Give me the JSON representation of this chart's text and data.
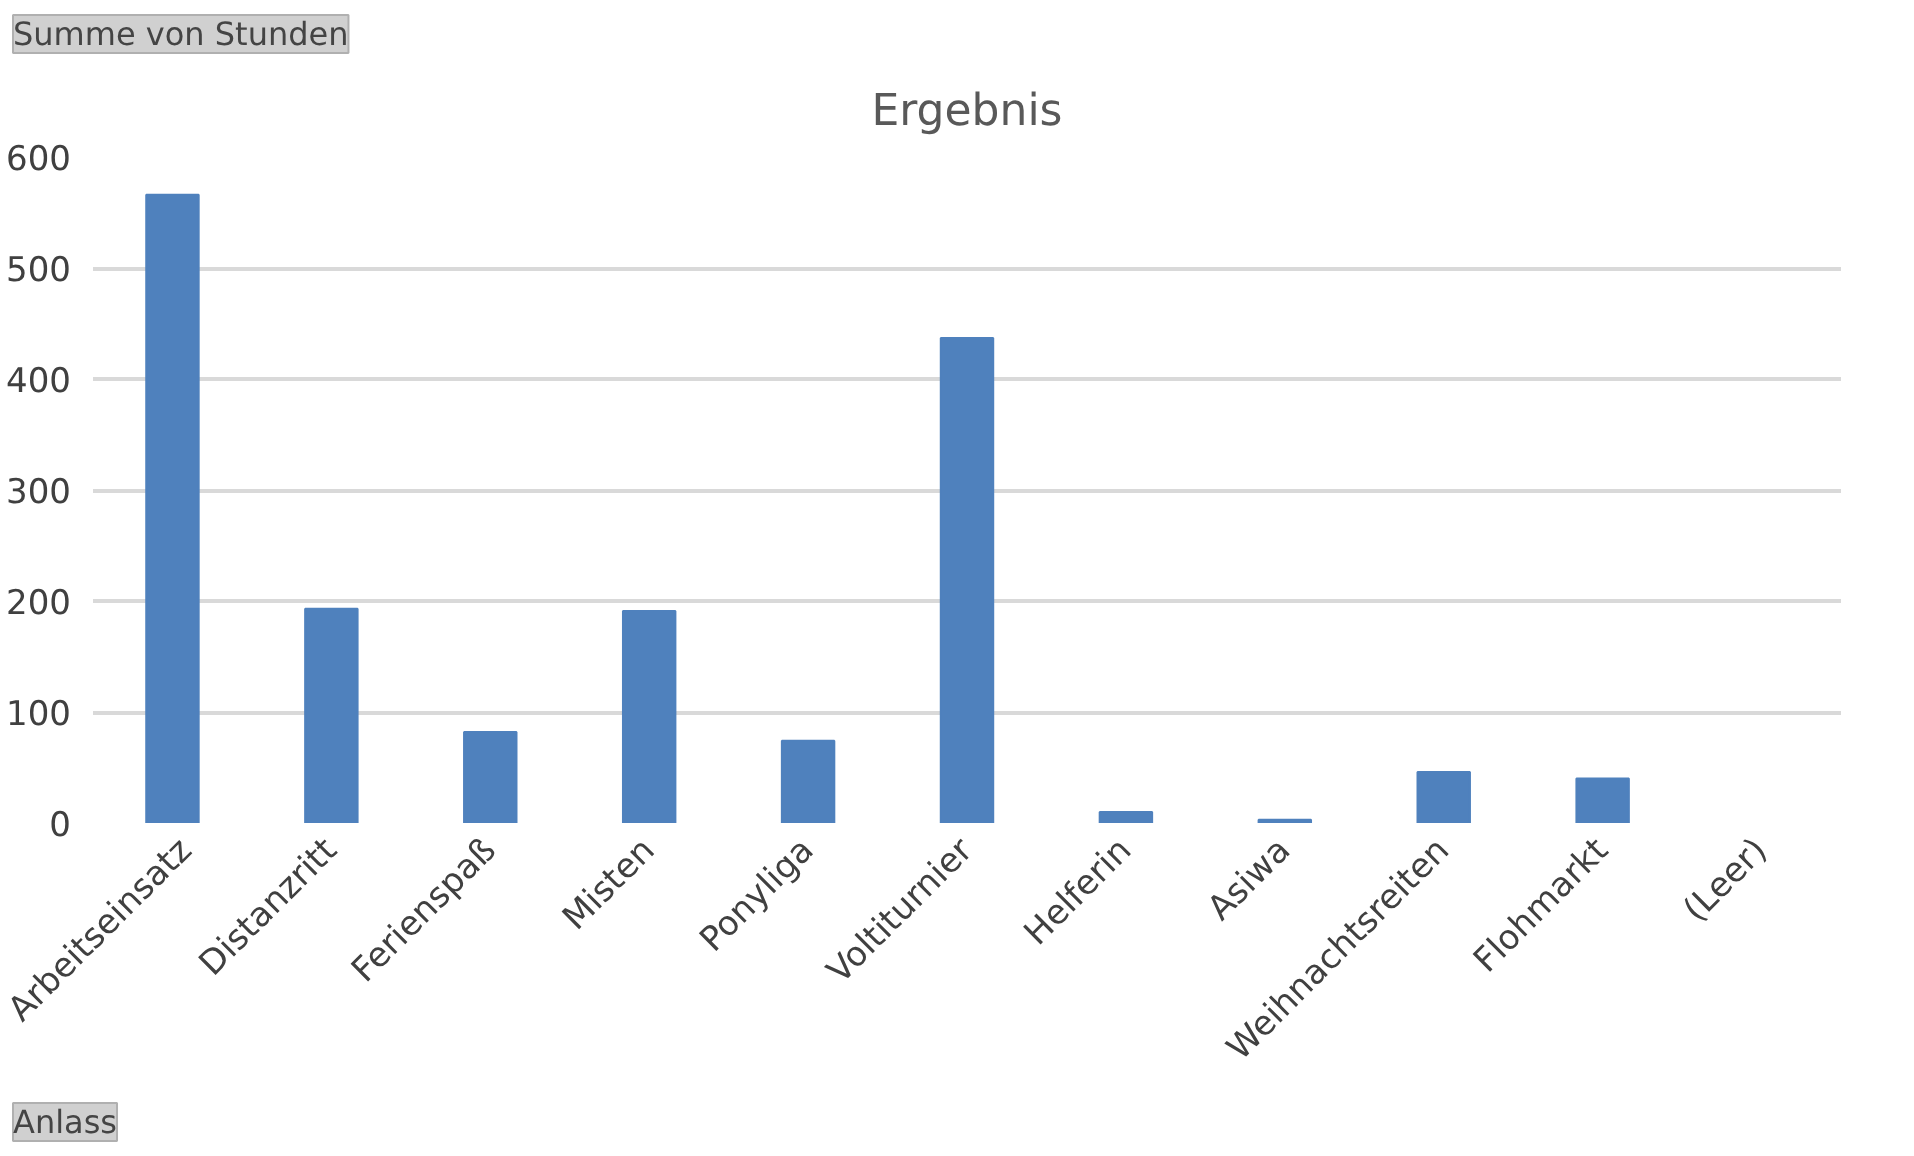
{
  "chart_data": {
    "type": "bar",
    "title": "Ergebnis",
    "categories": [
      "Arbeitseinsatz",
      "Distanzritt",
      "Ferienspaß",
      "Misten",
      "Ponyliga",
      "Voltiturnier",
      "Helferin",
      "Asiwa",
      "Weihnachtsreiten",
      "Flohmarkt",
      "(Leer)"
    ],
    "values": [
      566,
      193,
      82,
      191,
      74,
      437,
      10,
      3,
      46,
      40,
      null
    ],
    "color": "#4f81bd",
    "ylim": [
      0,
      600
    ],
    "yticks": [
      0,
      100,
      200,
      300,
      400,
      500,
      600
    ],
    "grid": "y",
    "annotations": [
      "Summe von Stunden",
      "Anlass"
    ]
  }
}
